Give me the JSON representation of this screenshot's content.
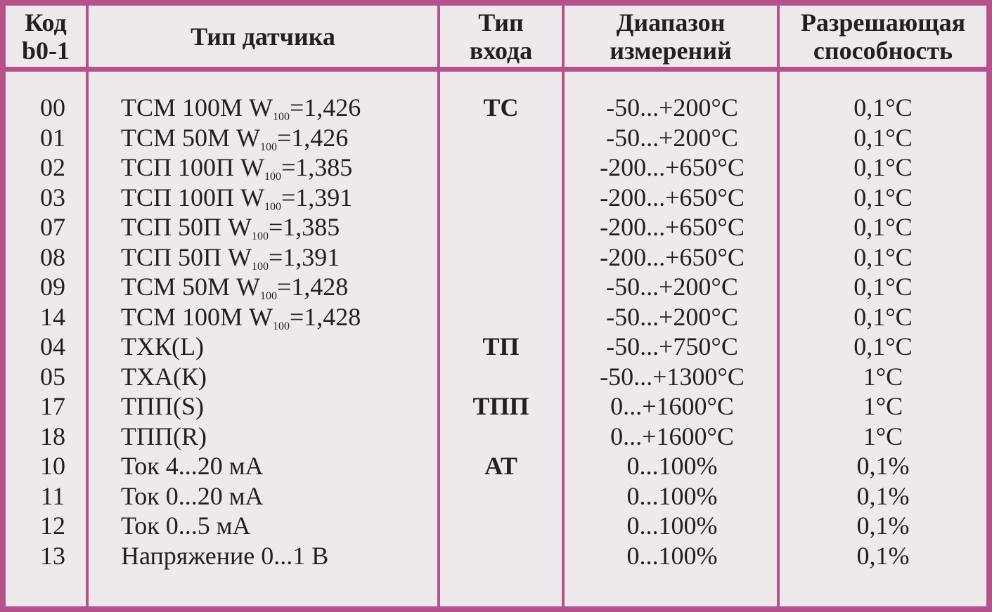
{
  "headers": {
    "code": [
      "Код",
      "b0-1"
    ],
    "sensor": [
      "Тип датчика"
    ],
    "input": [
      "Тип",
      "входа"
    ],
    "range": [
      "Диапазон",
      "измерений"
    ],
    "resolution": [
      "Разрешающая",
      "способность"
    ]
  },
  "rows": [
    {
      "code": "00",
      "pre": "ТСМ 100М W",
      "sub": "100",
      "post": "=1,426",
      "input": "ТС",
      "range": "-50...+200°С",
      "resolution": "0,1°С"
    },
    {
      "code": "01",
      "pre": "ТСМ 50М W",
      "sub": "100",
      "post": "=1,426",
      "input": "",
      "range": "-50...+200°С",
      "resolution": "0,1°С"
    },
    {
      "code": "02",
      "pre": "ТСП 100П W",
      "sub": "100",
      "post": "=1,385",
      "input": "",
      "range": "-200...+650°С",
      "resolution": "0,1°С"
    },
    {
      "code": "03",
      "pre": "ТСП 100П W",
      "sub": "100",
      "post": "=1,391",
      "input": "",
      "range": "-200...+650°С",
      "resolution": "0,1°С"
    },
    {
      "code": "07",
      "pre": "ТСП 50П W",
      "sub": "100",
      "post": "=1,385",
      "input": "",
      "range": "-200...+650°С",
      "resolution": "0,1°С"
    },
    {
      "code": "08",
      "pre": "ТСП 50П W",
      "sub": "100",
      "post": "=1,391",
      "input": "",
      "range": "-200...+650°С",
      "resolution": "0,1°С"
    },
    {
      "code": "09",
      "pre": "ТСМ 50М W",
      "sub": "100",
      "post": "=1,428",
      "input": "",
      "range": "-50...+200°С",
      "resolution": "0,1°С"
    },
    {
      "code": "14",
      "pre": "ТСМ 100М W",
      "sub": "100",
      "post": "=1,428",
      "input": "",
      "range": "-50...+200°С",
      "resolution": "0,1°С"
    },
    {
      "code": "04",
      "pre": "ТХК(L)",
      "sub": "",
      "post": "",
      "input": "ТП",
      "range": "-50...+750°С",
      "resolution": "0,1°С"
    },
    {
      "code": "05",
      "pre": "ТХА(К)",
      "sub": "",
      "post": "",
      "input": "",
      "range": "-50...+1300°С",
      "resolution": "1°С"
    },
    {
      "code": "17",
      "pre": "ТПП(S)",
      "sub": "",
      "post": "",
      "input": "ТПП",
      "range": "0...+1600°С",
      "resolution": "1°С"
    },
    {
      "code": "18",
      "pre": "ТПП(R)",
      "sub": "",
      "post": "",
      "input": "",
      "range": "0...+1600°С",
      "resolution": "1°С"
    },
    {
      "code": "10",
      "pre": "Ток 4...20 мА",
      "sub": "",
      "post": "",
      "input": "АТ",
      "range": "0...100%",
      "resolution": "0,1%"
    },
    {
      "code": "11",
      "pre": "Ток 0...20 мА",
      "sub": "",
      "post": "",
      "input": "",
      "range": "0...100%",
      "resolution": "0,1%"
    },
    {
      "code": "12",
      "pre": "Ток 0...5 мА",
      "sub": "",
      "post": "",
      "input": "",
      "range": "0...100%",
      "resolution": "0,1%"
    },
    {
      "code": "13",
      "pre": "Напряжение 0...1 В",
      "sub": "",
      "post": "",
      "input": "",
      "range": "0...100%",
      "resolution": "0,1%"
    }
  ]
}
